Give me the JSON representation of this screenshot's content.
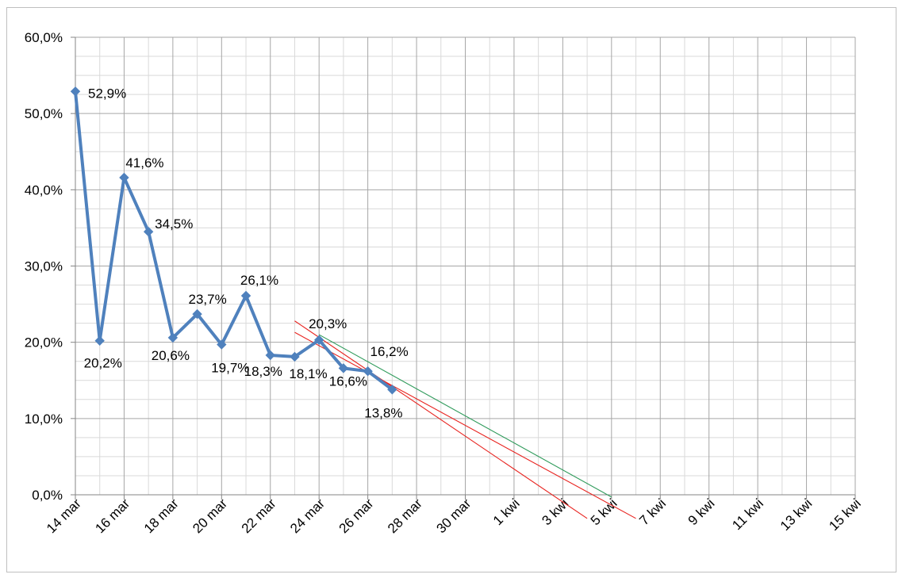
{
  "chart_data": {
    "type": "line",
    "title": "",
    "xlabel": "",
    "ylabel": "",
    "ylim": [
      0,
      60
    ],
    "yticks": [
      {
        "value": 0,
        "label": "0,0%"
      },
      {
        "value": 10,
        "label": "10,0%"
      },
      {
        "value": 20,
        "label": "20,0%"
      },
      {
        "value": 30,
        "label": "30,0%"
      },
      {
        "value": 40,
        "label": "40,0%"
      },
      {
        "value": 50,
        "label": "50,0%"
      },
      {
        "value": 60,
        "label": "60,0%"
      }
    ],
    "xrange": [
      "14 mar",
      "15 kwi"
    ],
    "xticks": [
      "14 mar",
      "16 mar",
      "18 mar",
      "20 mar",
      "22 mar",
      "24 mar",
      "26 mar",
      "28 mar",
      "30 mar",
      "1 kwi",
      "3 kwi",
      "5 kwi",
      "7 kwi",
      "9 kwi",
      "11 kwi",
      "13 kwi",
      "15 kwi"
    ],
    "grid": true,
    "series": [
      {
        "color": "#4f81bd",
        "marker": "diamond",
        "points": [
          {
            "x": "14 mar",
            "y": 52.9,
            "label": "52,9%"
          },
          {
            "x": "15 mar",
            "y": 20.2,
            "label": "20,2%"
          },
          {
            "x": "16 mar",
            "y": 41.6,
            "label": "41,6%"
          },
          {
            "x": "17 mar",
            "y": 34.5,
            "label": "34,5%"
          },
          {
            "x": "18 mar",
            "y": 20.6,
            "label": "20,6%"
          },
          {
            "x": "19 mar",
            "y": 23.7,
            "label": "23,7%"
          },
          {
            "x": "20 mar",
            "y": 19.7,
            "label": "19,7%"
          },
          {
            "x": "21 mar",
            "y": 26.1,
            "label": "26,1%"
          },
          {
            "x": "22 mar",
            "y": 18.3,
            "label": "18,3%"
          },
          {
            "x": "23 mar",
            "y": 18.1,
            "label": "18,1%"
          },
          {
            "x": "24 mar",
            "y": 20.3,
            "label": "20,3%"
          },
          {
            "x": "25 mar",
            "y": 16.6,
            "label": "16,6%"
          },
          {
            "x": "26 mar",
            "y": 16.2,
            "label": "16,2%"
          },
          {
            "x": "27 mar",
            "y": 13.8,
            "label": "13,8%"
          }
        ]
      }
    ],
    "trend_lines": [
      {
        "color": "#e8231f",
        "from": {
          "x": "23 mar",
          "y": 22.8
        },
        "to": {
          "x": "4 kwi",
          "y": -3.1
        }
      },
      {
        "color": "#e8231f",
        "from": {
          "x": "23 mar",
          "y": 21.3
        },
        "to": {
          "x": "6 kwi",
          "y": -3.1
        }
      },
      {
        "color": "#2e9a5a",
        "from": {
          "x": "24 mar",
          "y": 21.0
        },
        "to": {
          "x": "5 kwi",
          "y": -0.3
        }
      }
    ]
  }
}
